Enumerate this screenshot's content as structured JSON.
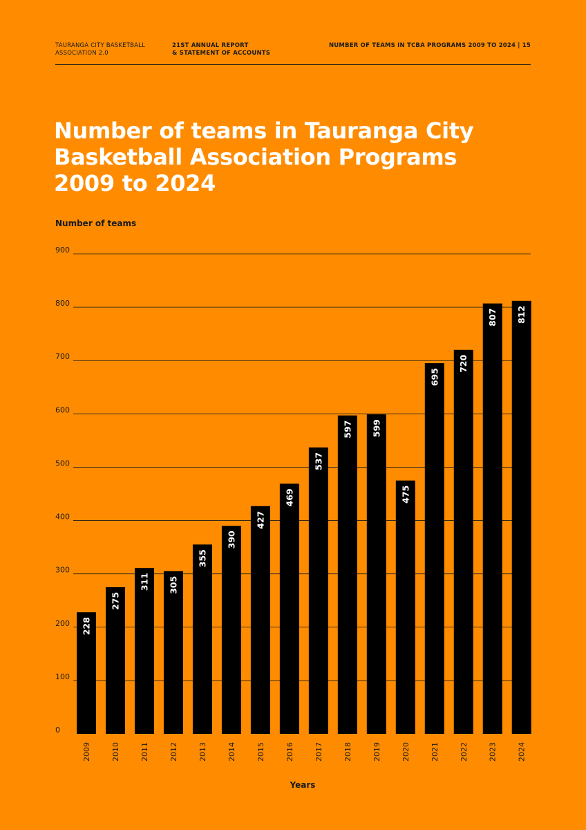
{
  "header": {
    "org_line1": "TAURANGA CITY BASKETBALL",
    "org_line2": "ASSOCIATION 2.0",
    "report_line1": "21ST ANNUAL REPORT",
    "report_line2": "& STATEMENT OF ACCOUNTS",
    "section": "NUMBER OF TEAMS IN TCBA PROGRAMS 2009 TO 2024 | 15"
  },
  "chart_data": {
    "type": "bar",
    "title_lines": [
      "Number of teams in Tauranga City",
      "Basketball Association Programs",
      "2009 to 2024"
    ],
    "ylabel": "Number of teams",
    "xlabel": "Years",
    "ylim": [
      0,
      900
    ],
    "yticks": [
      "0",
      "100",
      "200",
      "300",
      "400",
      "500",
      "600",
      "700",
      "800",
      "900"
    ],
    "categories": [
      "2009",
      "2010",
      "2011",
      "2012",
      "2013",
      "2014",
      "2015",
      "2016",
      "2017",
      "2018",
      "2019",
      "2020",
      "2021",
      "2022",
      "2023",
      "2024"
    ],
    "values": [
      228,
      275,
      311,
      305,
      355,
      390,
      427,
      469,
      537,
      597,
      599,
      475,
      695,
      720,
      807,
      812
    ],
    "grid": true,
    "colors": {
      "background": "#ff8c00",
      "bar": "#000000",
      "bar_label": "#ffffff",
      "title": "#ffffff",
      "text": "#1a1a1a"
    }
  }
}
